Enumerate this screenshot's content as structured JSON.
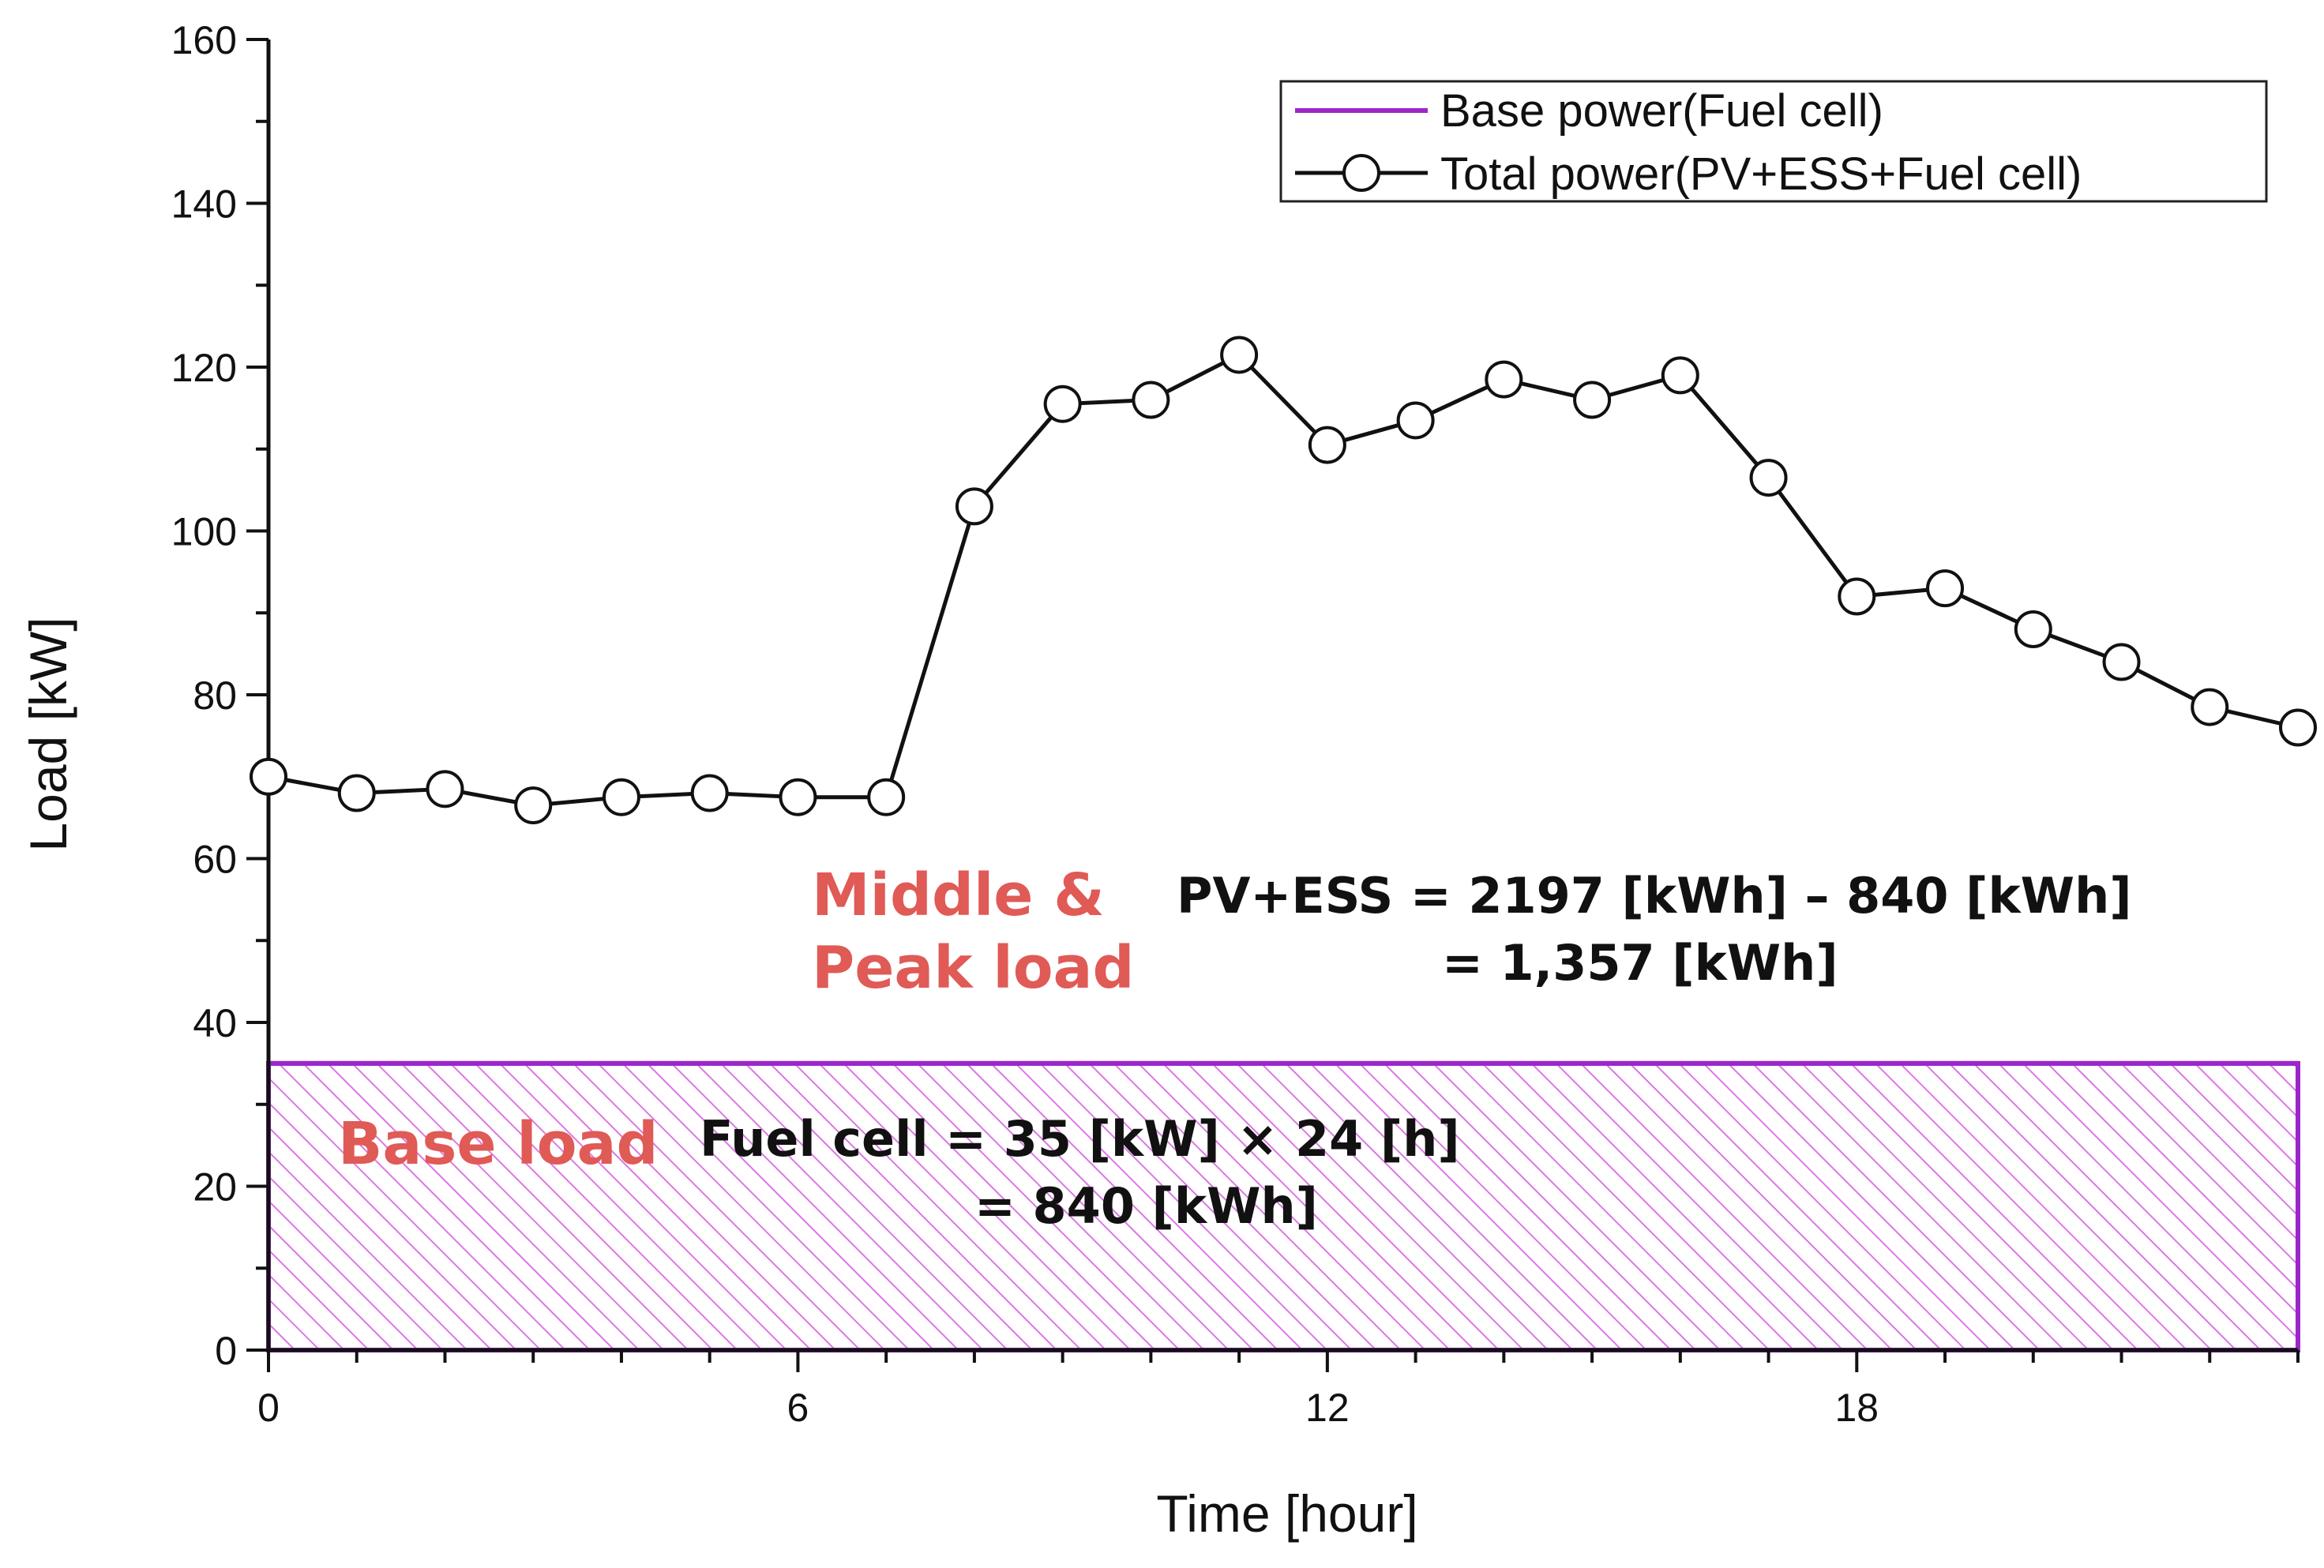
{
  "chart_data": {
    "type": "line",
    "title": "",
    "xlabel": "Time [hour]",
    "ylabel": "Load [kW]",
    "xlim": [
      0,
      23
    ],
    "ylim": [
      0,
      160
    ],
    "x_ticks": [
      0,
      6,
      12,
      18
    ],
    "y_ticks": [
      0,
      20,
      40,
      60,
      80,
      100,
      120,
      140,
      160
    ],
    "grid": false,
    "legend_position": "top-right",
    "series": [
      {
        "name": "Base power(Fuel cell)",
        "kind": "constant-band",
        "color": "#9b27c9",
        "value": 35,
        "x": [
          0,
          23
        ]
      },
      {
        "name": "Total power(PV+ESS+Fuel cell)",
        "kind": "line-with-circle-markers",
        "color": "#111111",
        "x": [
          0,
          1,
          2,
          3,
          4,
          5,
          6,
          7,
          8,
          9,
          10,
          11,
          12,
          13,
          14,
          15,
          16,
          17,
          18,
          19,
          20,
          21,
          22,
          23
        ],
        "values": [
          70,
          68,
          68.5,
          66.5,
          67.5,
          68,
          67.5,
          67.5,
          103,
          115.5,
          116,
          121.5,
          110.5,
          113.5,
          118.5,
          116,
          119,
          106.5,
          92,
          93,
          88,
          84,
          78.5,
          76
        ]
      }
    ],
    "annotations": {
      "peak_label_line1": "Middle &",
      "peak_label_line2": "Peak load",
      "pv_formula_line1": "PV+ESS = 2197 [kWh] – 840 [kWh]",
      "pv_formula_line2": "= 1,357 [kWh]",
      "base_label": "Base load",
      "fuel_formula_line1": "Fuel cell = 35 [kW] × 24 [h]",
      "fuel_formula_line2": "= 840 [kWh]"
    },
    "colors": {
      "annotation_red": "#e05a56",
      "base_band": "#9b27c9",
      "hatch": "#dd77e6",
      "line": "#111111"
    }
  }
}
